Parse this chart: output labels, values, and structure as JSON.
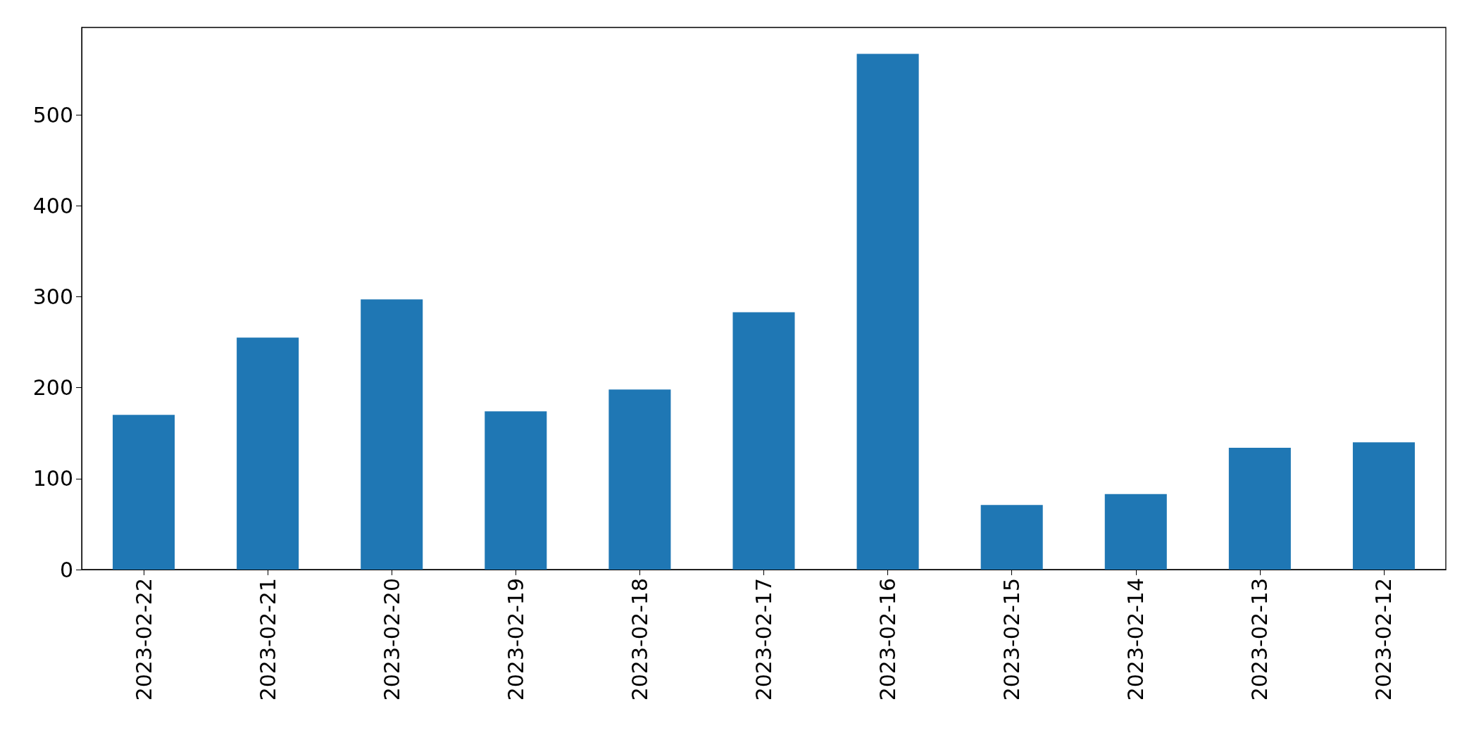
{
  "chart_data": {
    "type": "bar",
    "categories": [
      "2023-02-22",
      "2023-02-21",
      "2023-02-20",
      "2023-02-19",
      "2023-02-18",
      "2023-02-17",
      "2023-02-16",
      "2023-02-15",
      "2023-02-14",
      "2023-02-13",
      "2023-02-12"
    ],
    "values": [
      170,
      255,
      297,
      174,
      198,
      283,
      567,
      71,
      83,
      134,
      140
    ],
    "color": "#1f77b4",
    "ylim": [
      0,
      596
    ],
    "yticks": [
      0,
      100,
      200,
      300,
      400,
      500
    ]
  }
}
